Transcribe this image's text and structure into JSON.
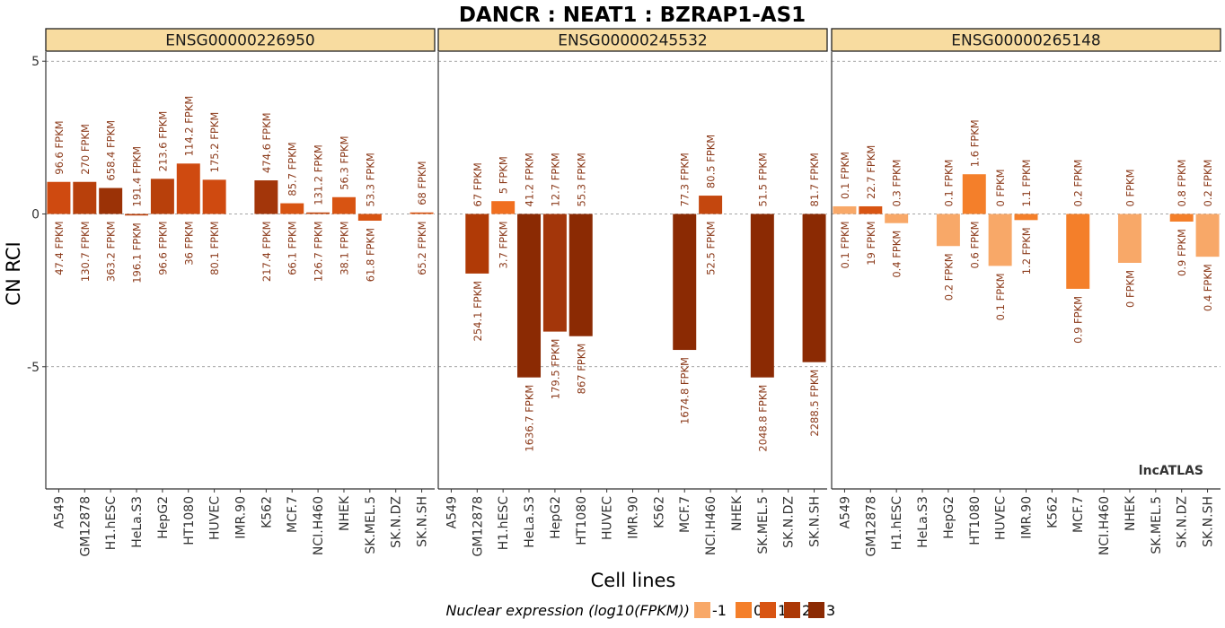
{
  "chart_data": {
    "type": "bar",
    "title": "DANCR : NEAT1 : BZRAP1-AS1",
    "xlabel": "Cell lines",
    "ylabel": "CN RCI",
    "yticks": [
      5,
      0,
      -5
    ],
    "ylim": [
      -9,
      5.3
    ],
    "grid": "dashed horizontal at ticks",
    "watermark": "lncATLAS",
    "legend": {
      "title": "Nuclear expression (log10(FPKM))",
      "position": "bottom",
      "keys": [
        {
          "label": "-1",
          "color": "#f8a868"
        },
        {
          "label": "0",
          "color": "#f47f2a"
        },
        {
          "label": "1",
          "color": "#d85412"
        },
        {
          "label": "2",
          "color": "#ac3806"
        },
        {
          "label": "3",
          "color": "#8b2a03"
        }
      ]
    },
    "categories": [
      "A549",
      "GM12878",
      "H1.hESC",
      "HeLa.S3",
      "HepG2",
      "HT1080",
      "HUVEC",
      "IMR.90",
      "K562",
      "MCF.7",
      "NCI.H460",
      "NHEK",
      "SK.MEL.5",
      "SK.N.DZ",
      "SK.N.SH"
    ],
    "panels": [
      {
        "label": "ENSG00000226950",
        "bars": [
          {
            "cat": "A549",
            "value": 1.05,
            "color": "#cf4a10",
            "top_label": "96.6 FPKM",
            "bottom_label": "47.4 FPKM"
          },
          {
            "cat": "GM12878",
            "value": 1.05,
            "color": "#b8400b",
            "top_label": "270 FPKM",
            "bottom_label": "130.7 FPKM"
          },
          {
            "cat": "H1.hESC",
            "value": 0.85,
            "color": "#9b3206",
            "top_label": "658.4 FPKM",
            "bottom_label": "363.2 FPKM"
          },
          {
            "cat": "HeLa.S3",
            "value": -0.05,
            "color": "#b8400b",
            "top_label": "191.4 FPKM",
            "bottom_label": "196.1 FPKM"
          },
          {
            "cat": "HepG2",
            "value": 1.15,
            "color": "#b8400b",
            "top_label": "213.6 FPKM",
            "bottom_label": "96.6 FPKM"
          },
          {
            "cat": "HT1080",
            "value": 1.65,
            "color": "#cf4a10",
            "top_label": "114.2 FPKM",
            "bottom_label": "36 FPKM"
          },
          {
            "cat": "HUVEC",
            "value": 1.12,
            "color": "#cf4a10",
            "top_label": "175.2 FPKM",
            "bottom_label": "80.1 FPKM"
          },
          {
            "cat": "IMR.90",
            "value": null,
            "color": "",
            "top_label": "",
            "bottom_label": ""
          },
          {
            "cat": "K562",
            "value": 1.1,
            "color": "#a3360a",
            "top_label": "474.6 FPKM",
            "bottom_label": "217.4 FPKM"
          },
          {
            "cat": "MCF.7",
            "value": 0.35,
            "color": "#d85412",
            "top_label": "85.7 FPKM",
            "bottom_label": "66.1 FPKM"
          },
          {
            "cat": "NCI.H460",
            "value": 0.05,
            "color": "#c4470e",
            "top_label": "131.2 FPKM",
            "bottom_label": "126.7 FPKM"
          },
          {
            "cat": "NHEK",
            "value": 0.55,
            "color": "#d85412",
            "top_label": "56.3 FPKM",
            "bottom_label": "38.1 FPKM"
          },
          {
            "cat": "SK.MEL.5",
            "value": -0.22,
            "color": "#d85412",
            "top_label": "53.3 FPKM",
            "bottom_label": "61.8 FPKM"
          },
          {
            "cat": "SK.N.DZ",
            "value": null,
            "color": "",
            "top_label": "",
            "bottom_label": ""
          },
          {
            "cat": "SK.N.SH",
            "value": 0.05,
            "color": "#d85412",
            "top_label": "68 FPKM",
            "bottom_label": "65.2 FPKM"
          }
        ]
      },
      {
        "label": "ENSG00000245532",
        "bars": [
          {
            "cat": "A549",
            "value": null,
            "color": "",
            "top_label": "",
            "bottom_label": ""
          },
          {
            "cat": "GM12878",
            "value": -1.95,
            "color": "#b03a06",
            "top_label": "67 FPKM",
            "bottom_label": "254.1 FPKM"
          },
          {
            "cat": "H1.hESC",
            "value": 0.42,
            "color": "#f06f20",
            "top_label": "5 FPKM",
            "bottom_label": "3.7 FPKM"
          },
          {
            "cat": "HeLa.S3",
            "value": -5.35,
            "color": "#8b2a03",
            "top_label": "41.2 FPKM",
            "bottom_label": "1636.7 FPKM"
          },
          {
            "cat": "HepG2",
            "value": -3.85,
            "color": "#a3360a",
            "top_label": "12.7 FPKM",
            "bottom_label": "179.5 FPKM"
          },
          {
            "cat": "HT1080",
            "value": -4.0,
            "color": "#8b2a03",
            "top_label": "55.3 FPKM",
            "bottom_label": "867 FPKM"
          },
          {
            "cat": "HUVEC",
            "value": null,
            "color": "",
            "top_label": "",
            "bottom_label": ""
          },
          {
            "cat": "IMR.90",
            "value": null,
            "color": "",
            "top_label": "",
            "bottom_label": ""
          },
          {
            "cat": "K562",
            "value": null,
            "color": "",
            "top_label": "",
            "bottom_label": ""
          },
          {
            "cat": "MCF.7",
            "value": -4.45,
            "color": "#8b2a03",
            "top_label": "77.3 FPKM",
            "bottom_label": "1674.8 FPKM"
          },
          {
            "cat": "NCI.H460",
            "value": 0.6,
            "color": "#c4470e",
            "top_label": "80.5 FPKM",
            "bottom_label": "52.5 FPKM"
          },
          {
            "cat": "NHEK",
            "value": null,
            "color": "",
            "top_label": "",
            "bottom_label": ""
          },
          {
            "cat": "SK.MEL.5",
            "value": -5.35,
            "color": "#8b2a03",
            "top_label": "51.5 FPKM",
            "bottom_label": "2048.8 FPKM"
          },
          {
            "cat": "SK.N.DZ",
            "value": null,
            "color": "",
            "top_label": "",
            "bottom_label": ""
          },
          {
            "cat": "SK.N.SH",
            "value": -4.85,
            "color": "#8b2a03",
            "top_label": "81.7 FPKM",
            "bottom_label": "2288.5 FPKM"
          }
        ]
      },
      {
        "label": "ENSG00000265148",
        "bars": [
          {
            "cat": "A549",
            "value": 0.25,
            "color": "#f8a868",
            "top_label": "0.1 FPKM",
            "bottom_label": "0.1 FPKM"
          },
          {
            "cat": "GM12878",
            "value": 0.25,
            "color": "#d85412",
            "top_label": "22.7 FPKM",
            "bottom_label": "19 FPKM"
          },
          {
            "cat": "H1.hESC",
            "value": -0.3,
            "color": "#f8a868",
            "top_label": "0.3 FPKM",
            "bottom_label": "0.4 FPKM"
          },
          {
            "cat": "HeLa.S3",
            "value": null,
            "color": "",
            "top_label": "",
            "bottom_label": ""
          },
          {
            "cat": "HepG2",
            "value": -1.05,
            "color": "#f8a868",
            "top_label": "0.1 FPKM",
            "bottom_label": "0.2 FPKM"
          },
          {
            "cat": "HT1080",
            "value": 1.3,
            "color": "#f47f2a",
            "top_label": "1.6 FPKM",
            "bottom_label": "0.6 FPKM"
          },
          {
            "cat": "HUVEC",
            "value": -1.7,
            "color": "#f8a868",
            "top_label": "0 FPKM",
            "bottom_label": "0.1 FPKM"
          },
          {
            "cat": "IMR.90",
            "value": -0.2,
            "color": "#f47f2a",
            "top_label": "1.1 FPKM",
            "bottom_label": "1.2 FPKM"
          },
          {
            "cat": "K562",
            "value": null,
            "color": "",
            "top_label": "",
            "bottom_label": ""
          },
          {
            "cat": "MCF.7",
            "value": -2.45,
            "color": "#f47f2a",
            "top_label": "0.2 FPKM",
            "bottom_label": "0.9 FPKM"
          },
          {
            "cat": "NCI.H460",
            "value": null,
            "color": "",
            "top_label": "",
            "bottom_label": ""
          },
          {
            "cat": "NHEK",
            "value": -1.6,
            "color": "#f8a868",
            "top_label": "0 FPKM",
            "bottom_label": "0 FPKM"
          },
          {
            "cat": "SK.MEL.5",
            "value": null,
            "color": "",
            "top_label": "",
            "bottom_label": ""
          },
          {
            "cat": "SK.N.DZ",
            "value": -0.25,
            "color": "#f47f2a",
            "top_label": "0.8 FPKM",
            "bottom_label": "0.9 FPKM"
          },
          {
            "cat": "SK.N.SH",
            "value": -1.4,
            "color": "#f8a868",
            "top_label": "0.2 FPKM",
            "bottom_label": "0.4 FPKM"
          }
        ]
      }
    ]
  },
  "colors": {
    "facet_strip": "#f8dca0",
    "facet_border": "#222222",
    "label_text": "#8b3a1a",
    "grid": "#888888"
  }
}
